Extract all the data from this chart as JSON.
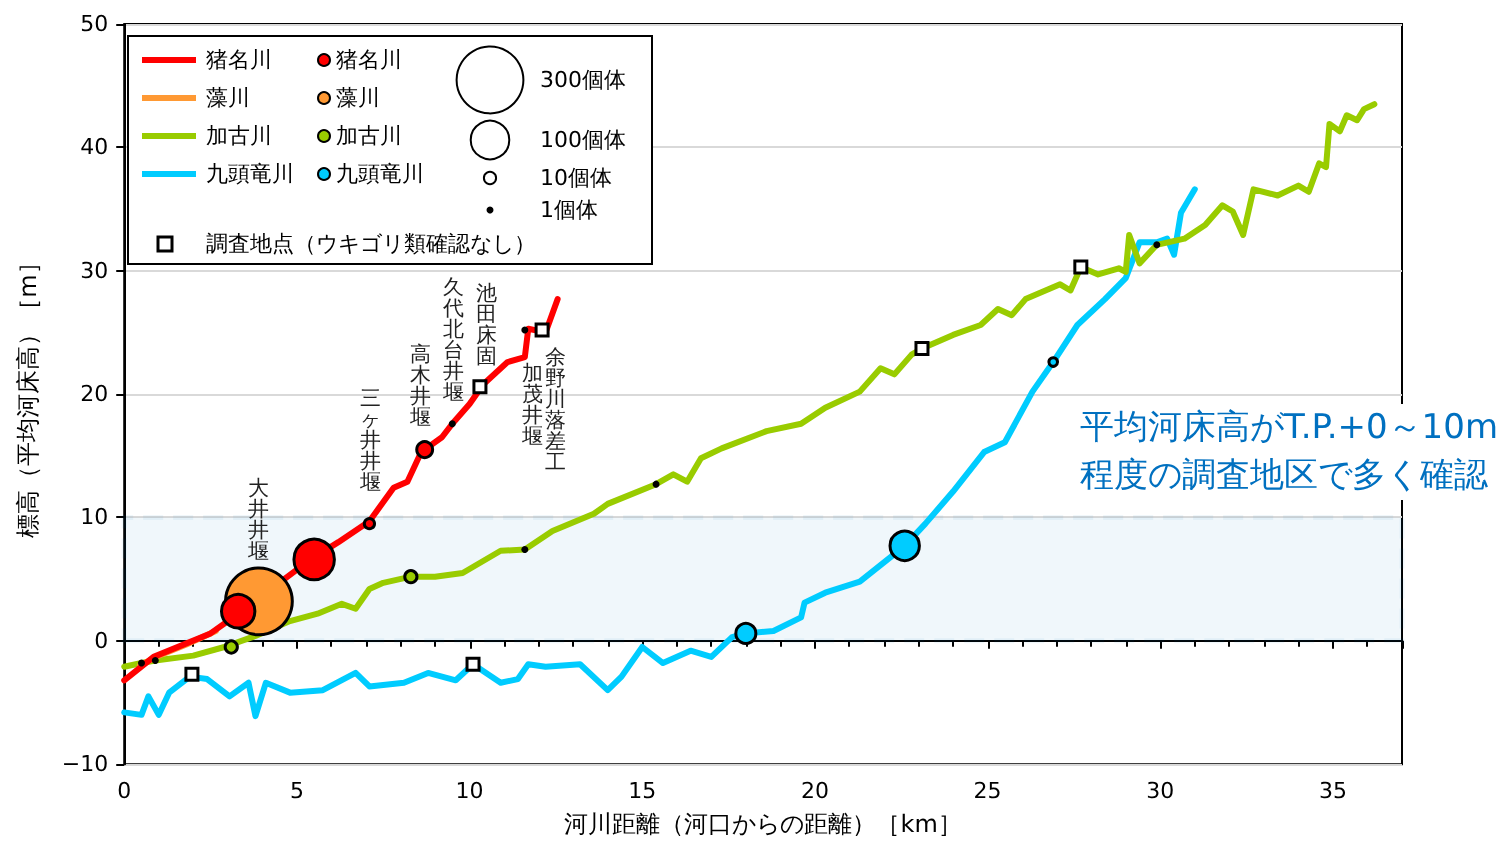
{
  "chart_data": {
    "type": "line",
    "xlabel": "河川距離（河口からの距離）［km］",
    "ylabel": "標高（平均河床高）［m］",
    "xlim": [
      0,
      37
    ],
    "xticks": [
      0,
      5,
      10,
      15,
      20,
      25,
      30,
      35
    ],
    "ylim": [
      -10,
      50
    ],
    "yticks": [
      -10,
      0,
      10,
      20,
      30,
      40,
      50
    ],
    "grid": "y",
    "legend": "top left",
    "series": [
      {
        "name": "猪名川",
        "marker": "none",
        "color": "#ff0000",
        "x": [
          0,
          0.85,
          2.5,
          3.3,
          5.35,
          6.2,
          7.1,
          7.8,
          8.2,
          8.6,
          9.2,
          9.5,
          10.0,
          10.4,
          11.1,
          11.6,
          11.7,
          12.2,
          12.55
        ],
        "values": [
          -3.2,
          -1.3,
          0.6,
          2.2,
          6.5,
          8.0,
          9.7,
          12.4,
          12.9,
          15.3,
          16.5,
          17.6,
          19.2,
          20.8,
          22.6,
          23.0,
          25.3,
          25.0,
          27.7
        ]
      },
      {
        "name": "藻川",
        "marker": "none",
        "color": "#ff9933",
        "x": [
          0.46,
          1.0,
          1.8,
          2.65
        ],
        "values": [
          -2.0,
          -1.2,
          -0.3,
          0.8
        ]
      },
      {
        "name": "加古川",
        "marker": "none",
        "color": "#99cc00",
        "x": [
          0,
          0.5,
          0.9,
          2.0,
          2.9,
          3.8,
          4.8,
          5.6,
          6.3,
          6.7,
          7.1,
          7.5,
          8.3,
          9.0,
          9.8,
          10.9,
          11.6,
          12.4,
          13.6,
          14.0,
          15.4,
          15.9,
          16.3,
          16.7,
          17.3,
          18.6,
          19.6,
          20.3,
          21.3,
          21.9,
          22.3,
          22.8,
          23.1,
          24.0,
          24.8,
          25.3,
          25.7,
          26.1,
          27.1,
          27.4,
          27.7,
          28.2,
          28.8,
          29.0,
          29.1,
          29.4,
          29.9,
          30.7,
          31.3,
          31.8,
          32.1,
          32.4,
          32.7,
          33.4,
          34.0,
          34.3,
          34.6,
          34.8,
          34.9,
          35.2,
          35.4,
          35.7,
          35.9,
          36.2
        ],
        "values": [
          -2.1,
          -1.8,
          -1.6,
          -1.2,
          -0.5,
          0.4,
          1.6,
          2.2,
          3.0,
          2.6,
          4.2,
          4.7,
          5.2,
          5.2,
          5.5,
          7.3,
          7.4,
          8.9,
          10.3,
          11.1,
          12.7,
          13.5,
          12.9,
          14.8,
          15.6,
          17.0,
          17.6,
          18.9,
          20.2,
          22.1,
          21.6,
          23.2,
          23.7,
          24.8,
          25.6,
          26.9,
          26.4,
          27.7,
          28.9,
          28.4,
          30.3,
          29.7,
          30.2,
          29.9,
          32.9,
          30.6,
          32.1,
          32.6,
          33.7,
          35.3,
          34.8,
          32.9,
          36.6,
          36.1,
          36.9,
          36.4,
          38.7,
          38.4,
          41.9,
          41.3,
          42.6,
          42.2,
          43.1,
          43.5
        ]
      },
      {
        "name": "九頭竜川",
        "marker": "none",
        "color": "#00ccff",
        "x": [
          0,
          0.5,
          0.7,
          1.0,
          1.3,
          1.9,
          2.4,
          3.05,
          3.6,
          3.8,
          4.1,
          4.8,
          5.75,
          6.7,
          7.1,
          8.1,
          8.8,
          9.6,
          10.1,
          10.9,
          11.4,
          11.7,
          12.2,
          13.2,
          14.0,
          14.4,
          15.0,
          15.6,
          16.4,
          17.0,
          17.6,
          18.0,
          18.8,
          19.6,
          19.7,
          20.3,
          21.3,
          22.6,
          23.2,
          24.0,
          24.9,
          25.5,
          26.3,
          26.9,
          27.6,
          28.4,
          29.0,
          29.4,
          29.9,
          30.2,
          30.4,
          30.6,
          31.0
        ],
        "values": [
          -5.8,
          -6.0,
          -4.5,
          -6.0,
          -4.2,
          -2.9,
          -3.1,
          -4.5,
          -3.4,
          -6.1,
          -3.4,
          -4.2,
          -4.0,
          -2.6,
          -3.7,
          -3.4,
          -2.6,
          -3.2,
          -1.9,
          -3.4,
          -3.1,
          -1.9,
          -2.1,
          -1.9,
          -4.0,
          -2.9,
          -0.5,
          -1.8,
          -0.8,
          -1.3,
          0.3,
          0.6,
          0.8,
          1.9,
          3.1,
          3.9,
          4.8,
          7.7,
          9.5,
          12.1,
          15.3,
          16.1,
          20.2,
          22.6,
          25.6,
          27.7,
          29.4,
          32.3,
          32.3,
          32.6,
          31.3,
          34.7,
          36.6
        ]
      },
      {
        "name": "猪名川",
        "type": "bubble",
        "color": "#ff0000",
        "x": [
          3.3,
          5.5,
          7.1,
          8.7
        ],
        "values": [
          2.4,
          6.6,
          9.5,
          15.5
        ],
        "sizes": [
          75,
          110,
          7,
          17
        ]
      },
      {
        "name": "藻川",
        "type": "bubble",
        "color": "#ff9933",
        "x": [
          3.9
        ],
        "values": [
          3.2
        ],
        "sizes": [
          300
        ]
      },
      {
        "name": "加古川",
        "type": "bubble",
        "color": "#99cc00",
        "x": [
          3.1,
          8.3
        ],
        "values": [
          -0.5,
          5.2
        ],
        "sizes": [
          10,
          10
        ]
      },
      {
        "name": "九頭竜川",
        "type": "bubble",
        "color": "#00ccff",
        "x": [
          18.0,
          22.6,
          26.9
        ],
        "values": [
          0.6,
          7.7,
          22.6
        ],
        "sizes": [
          27,
          58,
          5
        ]
      },
      {
        "name": "1個体",
        "type": "scatter",
        "marker": "circle",
        "color": "#000000",
        "x": [
          9.5,
          11.6,
          0.5,
          0.9,
          11.6,
          15.4,
          29.9
        ],
        "values": [
          17.6,
          25.2,
          -1.8,
          -1.6,
          7.4,
          12.7,
          32.1
        ]
      },
      {
        "name": "調査地点（ウキゴリ類確認なし）",
        "type": "scatter",
        "marker": "square",
        "color": "#ffffff",
        "x": [
          1.96,
          10.1,
          10.3,
          12.1,
          23.1,
          27.7
        ],
        "values": [
          -2.7,
          -1.9,
          20.6,
          25.2,
          23.7,
          30.3
        ]
      }
    ],
    "size_legend": [
      {
        "value": 300,
        "label": "300個体"
      },
      {
        "value": 100,
        "label": "100個体"
      },
      {
        "value": 10,
        "label": "10個体"
      }
    ],
    "bands": [
      {
        "axis": "y",
        "from": 0,
        "to": 10,
        "color": "#0070c0"
      }
    ],
    "annotations": [
      {
        "text": "大井井堰",
        "x": 3.9,
        "y": 6.0
      },
      {
        "text": "三ヶ井井堰",
        "x": 7.15,
        "y": 11.6
      },
      {
        "text": "高木井堰",
        "x": 8.6,
        "y": 16.9
      },
      {
        "text": "久代北台井堰",
        "x": 9.55,
        "y": 18.9
      },
      {
        "text": "池田床固",
        "x": 10.5,
        "y": 21.8
      },
      {
        "text": "加茂井堰",
        "x": 11.6,
        "y": 25.2
      },
      {
        "text": "余野川落差工",
        "x": 12.1,
        "y": 25.2
      },
      "平均河床高がT.P.+0～10m\n程度の調査地区で多く確認"
    ]
  }
}
